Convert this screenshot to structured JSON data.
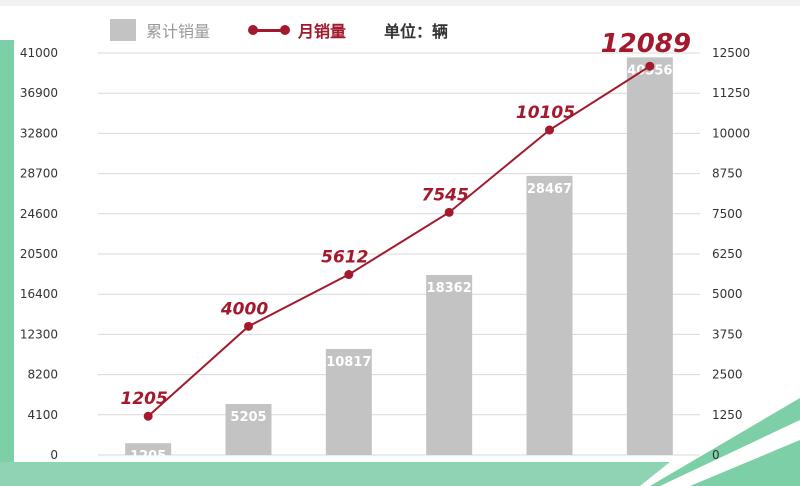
{
  "legend": {
    "cumulative_label": "累计销量",
    "monthly_label": "月销量",
    "unit_label": "单位：辆"
  },
  "colors": {
    "bar": "#c3c3c3",
    "line": "#a3192d",
    "grid": "#d9d9d9",
    "axis_text": "#333333",
    "accent_green": "#7ccfa6"
  },
  "chart_data": {
    "type": "bar",
    "categories": [
      "",
      "",
      "",
      "",
      "",
      ""
    ],
    "series": [
      {
        "name": "累计销量",
        "type": "bar",
        "axis": "left",
        "values": [
          1205,
          5205,
          10817,
          18362,
          28467,
          40556
        ]
      },
      {
        "name": "月销量",
        "type": "line",
        "axis": "right",
        "values": [
          1205,
          4000,
          5612,
          7545,
          10105,
          12089
        ]
      }
    ],
    "y_left": {
      "min": 0,
      "max": 41000,
      "ticks": [
        "0",
        "4100",
        "8200",
        "12300",
        "16400",
        "20500",
        "24600",
        "28700",
        "32800",
        "36900",
        "41000"
      ]
    },
    "y_right": {
      "min": 0,
      "max": 12500,
      "ticks": [
        "0",
        "1250",
        "2500",
        "3750",
        "5000",
        "6250",
        "7500",
        "8750",
        "10000",
        "11250",
        "12500"
      ]
    },
    "bar_labels": [
      "1205",
      "5205",
      "10817",
      "18362",
      "28467",
      "40556"
    ],
    "line_labels": [
      "1205",
      "4000",
      "5612",
      "7545",
      "10105",
      "12089"
    ],
    "grid": true,
    "legend_position": "top-left"
  }
}
